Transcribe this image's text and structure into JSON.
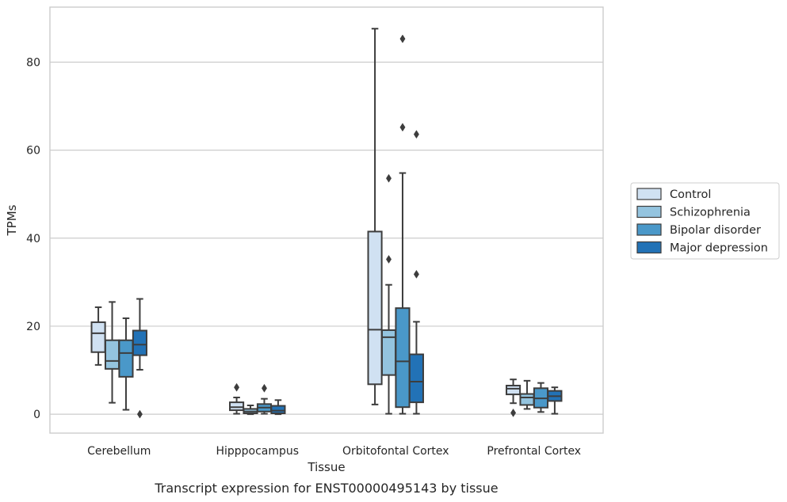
{
  "chart_data": {
    "type": "box",
    "title": "",
    "caption": "Transcript expression for ENST00000495143 by tissue",
    "xlabel": "Tissue",
    "ylabel": "TPMs",
    "ylim": [
      -4.3,
      92.5
    ],
    "yticks": [
      0,
      20,
      40,
      60,
      80
    ],
    "grid": "horizontal",
    "legend_position": "right",
    "categories": [
      "Cerebellum",
      "Hipppocampus",
      "Orbitofontal Cortex",
      "Prefrontal Cortex"
    ],
    "series": [
      {
        "name": "Control",
        "color": "#d0e1f2",
        "boxes": [
          {
            "whislo": 11.2,
            "q1": 14.1,
            "med": 18.4,
            "q3": 20.9,
            "whishi": 24.3,
            "fliers": []
          },
          {
            "whislo": 0.1,
            "q1": 0.9,
            "med": 1.6,
            "q3": 2.7,
            "whishi": 3.8,
            "fliers": [
              6.1
            ]
          },
          {
            "whislo": 2.2,
            "q1": 6.8,
            "med": 19.2,
            "q3": 41.5,
            "whishi": 87.6,
            "fliers": []
          },
          {
            "whislo": 2.5,
            "q1": 4.5,
            "med": 5.8,
            "q3": 6.5,
            "whishi": 7.9,
            "fliers": [
              0.3
            ]
          }
        ]
      },
      {
        "name": "Schizophrenia",
        "color": "#94c4df",
        "boxes": [
          {
            "whislo": 2.6,
            "q1": 10.3,
            "med": 12.1,
            "q3": 16.8,
            "whishi": 25.5,
            "fliers": []
          },
          {
            "whislo": 0.0,
            "q1": 0.2,
            "med": 0.6,
            "q3": 1.2,
            "whishi": 2.0,
            "fliers": []
          },
          {
            "whislo": 0.1,
            "q1": 8.9,
            "med": 17.5,
            "q3": 19.1,
            "whishi": 29.4,
            "fliers": [
              35.2,
              53.6
            ]
          },
          {
            "whislo": 1.2,
            "q1": 2.1,
            "med": 3.8,
            "q3": 4.6,
            "whishi": 7.6,
            "fliers": []
          }
        ]
      },
      {
        "name": "Bipolar disorder",
        "color": "#4a98c9",
        "boxes": [
          {
            "whislo": 1.0,
            "q1": 8.5,
            "med": 13.9,
            "q3": 16.8,
            "whishi": 21.8,
            "fliers": []
          },
          {
            "whislo": 0.1,
            "q1": 0.6,
            "med": 1.5,
            "q3": 2.3,
            "whishi": 3.5,
            "fliers": [
              5.9
            ]
          },
          {
            "whislo": 0.1,
            "q1": 1.6,
            "med": 12.0,
            "q3": 24.1,
            "whishi": 54.8,
            "fliers": [
              65.2,
              85.3
            ]
          },
          {
            "whislo": 0.5,
            "q1": 1.5,
            "med": 3.6,
            "q3": 5.9,
            "whishi": 7.1,
            "fliers": []
          }
        ]
      },
      {
        "name": "Major depression",
        "color": "#2272b6",
        "boxes": [
          {
            "whislo": 10.1,
            "q1": 13.4,
            "med": 15.8,
            "q3": 19.0,
            "whishi": 26.2,
            "fliers": [
              0.0
            ]
          },
          {
            "whislo": 0.0,
            "q1": 0.2,
            "med": 0.8,
            "q3": 1.9,
            "whishi": 3.2,
            "fliers": []
          },
          {
            "whislo": 0.1,
            "q1": 2.7,
            "med": 7.4,
            "q3": 13.6,
            "whishi": 21.0,
            "fliers": [
              31.8,
              63.6
            ]
          },
          {
            "whislo": 0.1,
            "q1": 3.0,
            "med": 4.1,
            "q3": 5.3,
            "whishi": 6.1,
            "fliers": []
          }
        ]
      }
    ]
  }
}
